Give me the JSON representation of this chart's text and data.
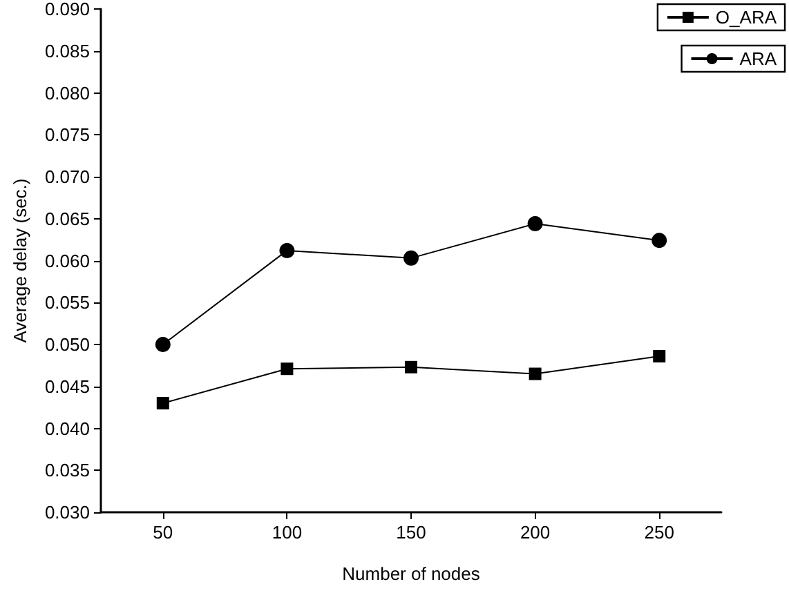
{
  "chart_data": {
    "type": "line",
    "xlabel": "Number of nodes",
    "ylabel": "Average delay (sec.)",
    "x": [
      50,
      100,
      150,
      200,
      250
    ],
    "series": [
      {
        "name": "O_ARA",
        "color": "#000000",
        "marker": "square",
        "values": [
          0.043,
          0.0471,
          0.0473,
          0.0465,
          0.0486
        ]
      },
      {
        "name": "ARA",
        "color": "#000000",
        "marker": "circle",
        "values": [
          0.05,
          0.0612,
          0.0603,
          0.0644,
          0.0624
        ]
      }
    ],
    "xlim": [
      25,
      275
    ],
    "xticks": [
      50,
      100,
      150,
      200,
      250
    ],
    "ylim": [
      0.03,
      0.09
    ],
    "yticks": [
      {
        "value": 0.03,
        "label": "0.030"
      },
      {
        "value": 0.035,
        "label": "0.035"
      },
      {
        "value": 0.04,
        "label": "0.040"
      },
      {
        "value": 0.045,
        "label": "0.045"
      },
      {
        "value": 0.05,
        "label": "0.050"
      },
      {
        "value": 0.055,
        "label": "0.055"
      },
      {
        "value": 0.06,
        "label": "0.060"
      },
      {
        "value": 0.065,
        "label": "0.065"
      },
      {
        "value": 0.07,
        "label": "0.070"
      },
      {
        "value": 0.075,
        "label": "0.075"
      },
      {
        "value": 0.08,
        "label": "0.080"
      },
      {
        "value": 0.085,
        "label": "0.085"
      },
      {
        "value": 0.09,
        "label": "0.090"
      }
    ],
    "grid": false,
    "legend": "top right",
    "line_style": "solid"
  }
}
